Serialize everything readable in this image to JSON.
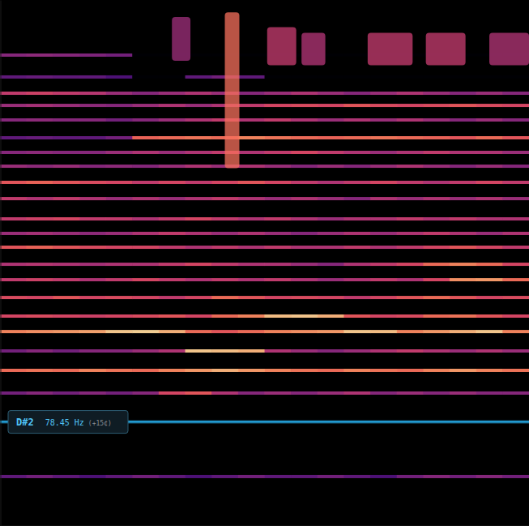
{
  "chart_data": {
    "type": "spectrogram",
    "log": "y",
    "tick_labels": false,
    "xlim": [
      0,
      20
    ],
    "ylim": [
      20,
      20000
    ],
    "zlim": [
      0,
      1
    ],
    "x": [
      0,
      1,
      2,
      3,
      4,
      5,
      6,
      7,
      8,
      9,
      10,
      11,
      12,
      13,
      14,
      15,
      16,
      17,
      18,
      19
    ],
    "rows": [
      {
        "frequency": 38.3,
        "values": [
          0.3,
          0.35,
          0.3,
          0.25,
          0.3,
          0.35,
          0.3,
          0.25,
          0.3,
          0.35,
          0.3,
          0.3,
          0.35,
          0.3,
          0.25,
          0.35,
          0.4,
          0.35,
          0.4,
          0.35
        ]
      },
      {
        "frequency": 114.6,
        "values": [
          0.35,
          0.4,
          0.35,
          0.4,
          0.35,
          0.4,
          0.6,
          0.65,
          0.5,
          0.4,
          0.45,
          0.4,
          0.45,
          0.5,
          0.4,
          0.45,
          0.4,
          0.45,
          0.4,
          0.4
        ]
      },
      {
        "frequency": 154.4,
        "values": [
          0.7,
          0.72,
          0.7,
          0.75,
          0.72,
          0.7,
          0.75,
          0.8,
          0.85,
          0.8,
          0.75,
          0.72,
          0.7,
          0.75,
          0.72,
          0.7,
          0.75,
          0.8,
          0.75,
          0.72
        ]
      },
      {
        "frequency": 199.3,
        "values": [
          0.35,
          0.4,
          0.35,
          0.4,
          0.4,
          0.45,
          0.5,
          0.9,
          0.88,
          0.85,
          0.5,
          0.45,
          0.4,
          0.45,
          0.5,
          0.55,
          0.5,
          0.45,
          0.5,
          0.45
        ]
      },
      {
        "frequency": 257,
        "values": [
          0.75,
          0.78,
          0.8,
          0.82,
          0.9,
          0.92,
          0.85,
          0.7,
          0.65,
          0.7,
          0.75,
          0.78,
          0.8,
          0.9,
          0.88,
          0.75,
          0.8,
          0.85,
          0.9,
          0.75
        ]
      },
      {
        "frequency": 315,
        "values": [
          0.6,
          0.62,
          0.6,
          0.58,
          0.6,
          0.62,
          0.65,
          0.6,
          0.7,
          0.75,
          0.88,
          0.9,
          0.85,
          0.65,
          0.6,
          0.62,
          0.7,
          0.72,
          0.65,
          0.6
        ]
      },
      {
        "frequency": 402,
        "values": [
          0.62,
          0.6,
          0.65,
          0.6,
          0.62,
          0.6,
          0.55,
          0.6,
          0.7,
          0.65,
          0.6,
          0.62,
          0.6,
          0.55,
          0.6,
          0.65,
          0.7,
          0.65,
          0.6,
          0.62
        ]
      },
      {
        "frequency": 508,
        "values": [
          0.55,
          0.58,
          0.55,
          0.5,
          0.55,
          0.6,
          0.55,
          0.5,
          0.55,
          0.5,
          0.55,
          0.5,
          0.45,
          0.5,
          0.55,
          0.5,
          0.6,
          0.78,
          0.8,
          0.7
        ]
      },
      {
        "frequency": 622,
        "values": [
          0.5,
          0.52,
          0.5,
          0.48,
          0.5,
          0.5,
          0.55,
          0.6,
          0.55,
          0.5,
          0.5,
          0.45,
          0.4,
          0.5,
          0.55,
          0.6,
          0.7,
          0.75,
          0.7,
          0.6
        ]
      },
      {
        "frequency": 778,
        "values": [
          0.65,
          0.68,
          0.65,
          0.62,
          0.6,
          0.6,
          0.55,
          0.5,
          0.55,
          0.5,
          0.55,
          0.5,
          0.5,
          0.55,
          0.5,
          0.55,
          0.6,
          0.65,
          0.6,
          0.55
        ]
      },
      {
        "frequency": 933,
        "values": [
          0.45,
          0.48,
          0.45,
          0.42,
          0.45,
          0.5,
          0.55,
          0.5,
          0.45,
          0.5,
          0.45,
          0.4,
          0.45,
          0.5,
          0.45,
          0.5,
          0.55,
          0.5,
          0.45,
          0.5
        ]
      },
      {
        "frequency": 1129,
        "values": [
          0.55,
          0.58,
          0.6,
          0.55,
          0.55,
          0.5,
          0.55,
          0.6,
          0.55,
          0.5,
          0.55,
          0.5,
          0.45,
          0.5,
          0.5,
          0.55,
          0.5,
          0.55,
          0.5,
          0.5
        ]
      },
      {
        "frequency": 1473,
        "values": [
          0.55,
          0.5,
          0.55,
          0.5,
          0.45,
          0.5,
          0.45,
          0.5,
          0.55,
          0.5,
          0.45,
          0.5,
          0.45,
          0.4,
          0.5,
          0.45,
          0.5,
          0.45,
          0.5,
          0.45
        ]
      },
      {
        "frequency": 1824,
        "values": [
          0.65,
          0.68,
          0.65,
          0.62,
          0.6,
          0.55,
          0.6,
          0.55,
          0.6,
          0.65,
          0.6,
          0.55,
          0.5,
          0.55,
          0.6,
          0.55,
          0.5,
          0.55,
          0.6,
          0.55
        ]
      },
      {
        "frequency": 2255,
        "values": [
          0.45,
          0.42,
          0.45,
          0.4,
          0.42,
          0.4,
          0.45,
          0.5,
          0.45,
          0.5,
          0.45,
          0.4,
          0.45,
          0.4,
          0.45,
          0.5,
          0.45,
          0.4,
          0.45,
          0.4
        ]
      },
      {
        "frequency": 2704,
        "values": [
          0.4,
          0.42,
          0.4,
          0.4,
          0.45,
          0.5,
          0.45,
          0.5,
          0.55,
          0.5,
          0.55,
          0.6,
          0.55,
          0.5,
          0.45,
          0.5,
          0.55,
          0.5,
          0.5,
          0.45
        ]
      },
      {
        "frequency": 3275,
        "values": [
          0.3,
          0.32,
          0.3,
          0.3,
          0.35,
          0.68,
          0.7,
          0.72,
          0.7,
          0.75,
          0.72,
          0.7,
          0.68,
          0.7,
          0.72,
          0.7,
          0.68,
          0.65,
          0.7,
          0.65
        ]
      },
      {
        "frequency": 4140,
        "values": [
          0.4,
          0.42,
          0.4,
          0.4,
          0.35,
          0.4,
          0.45,
          0.5,
          0.55,
          0.5,
          0.55,
          0.5,
          0.45,
          0.5,
          0.45,
          0.5,
          0.45,
          0.4,
          0.45,
          0.4
        ]
      },
      {
        "frequency": 5010,
        "values": [
          0.45,
          0.48,
          0.45,
          0.42,
          0.4,
          0.45,
          0.5,
          0.45,
          0.5,
          0.55,
          0.6,
          0.62,
          0.6,
          0.65,
          0.62,
          0.6,
          0.62,
          0.65,
          0.62,
          0.6
        ]
      },
      {
        "frequency": 5880,
        "values": [
          0.55,
          0.58,
          0.55,
          0.52,
          0.45,
          0.4,
          0.45,
          0.5,
          0.45,
          0.4,
          0.45,
          0.5,
          0.45,
          0.4,
          0.45,
          0.5,
          0.45,
          0.4,
          0.45,
          0.4
        ]
      },
      {
        "frequency": 7280,
        "values": [
          0.3,
          0.32,
          0.3,
          0.3,
          0.25,
          0,
          0,
          0.3,
          0.35,
          0.3,
          0,
          0,
          0,
          0,
          0,
          0,
          0,
          0,
          0,
          0
        ]
      },
      {
        "frequency": 9700,
        "values": [
          0.4,
          0.42,
          0.4,
          0.38,
          0.35,
          0,
          0,
          0,
          0,
          0,
          0,
          0,
          0,
          0,
          0,
          0,
          0,
          0,
          0,
          0
        ]
      }
    ],
    "bursts": [
      {
        "x": [
          8.5,
          9.05
        ],
        "frequency": [
          2200,
          17000
        ],
        "value": 0.7
      },
      {
        "x": [
          6.5,
          7.2
        ],
        "frequency": [
          9000,
          16000
        ],
        "value": 0.45
      },
      {
        "x": [
          10.1,
          11.2
        ],
        "frequency": [
          8500,
          14000
        ],
        "value": 0.55
      },
      {
        "x": [
          11.4,
          12.3
        ],
        "frequency": [
          8500,
          13000
        ],
        "value": 0.5
      },
      {
        "x": [
          13.9,
          15.6
        ],
        "frequency": [
          8500,
          13000
        ],
        "value": 0.55
      },
      {
        "x": [
          16.1,
          17.6
        ],
        "frequency": [
          8500,
          13000
        ],
        "value": 0.55
      },
      {
        "x": [
          18.5,
          20
        ],
        "frequency": [
          8500,
          13000
        ],
        "value": 0.5
      }
    ],
    "pitch": {
      "note": "D#2",
      "frequency": 78.45,
      "unit": "Hz",
      "cents": {
        "value": 15,
        "label": "(+15¢)"
      },
      "color": "#29b6f6"
    }
  }
}
